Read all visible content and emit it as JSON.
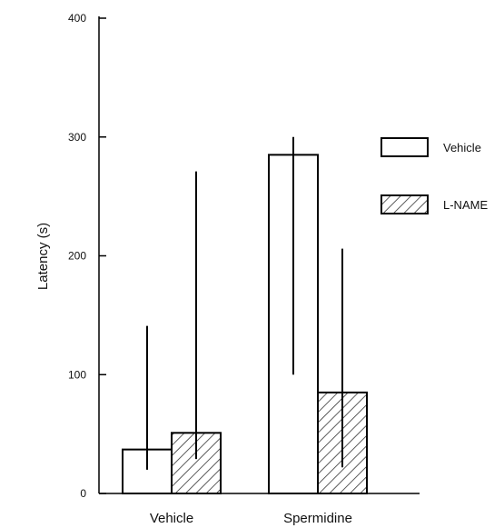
{
  "chart_data": {
    "type": "bar",
    "categories": [
      "Vehicle",
      "Spermidine"
    ],
    "series": [
      {
        "name": "Vehicle",
        "fill": "open",
        "values": [
          37,
          285
        ],
        "error_upper": [
          141,
          300
        ],
        "error_lower": [
          20,
          100
        ]
      },
      {
        "name": "L-NAME",
        "fill": "hatched",
        "values": [
          51,
          85
        ],
        "error_upper": [
          271,
          206
        ],
        "error_lower": [
          29,
          22
        ]
      }
    ],
    "ylabel": "Latency (s)",
    "ylim": [
      0,
      400
    ],
    "yticks": [
      0,
      100,
      200,
      300,
      400
    ],
    "legend": {
      "position": "right"
    },
    "grid": false
  },
  "colors": {
    "stroke": "#000000",
    "hatch": "#333333",
    "background": "#ffffff"
  }
}
